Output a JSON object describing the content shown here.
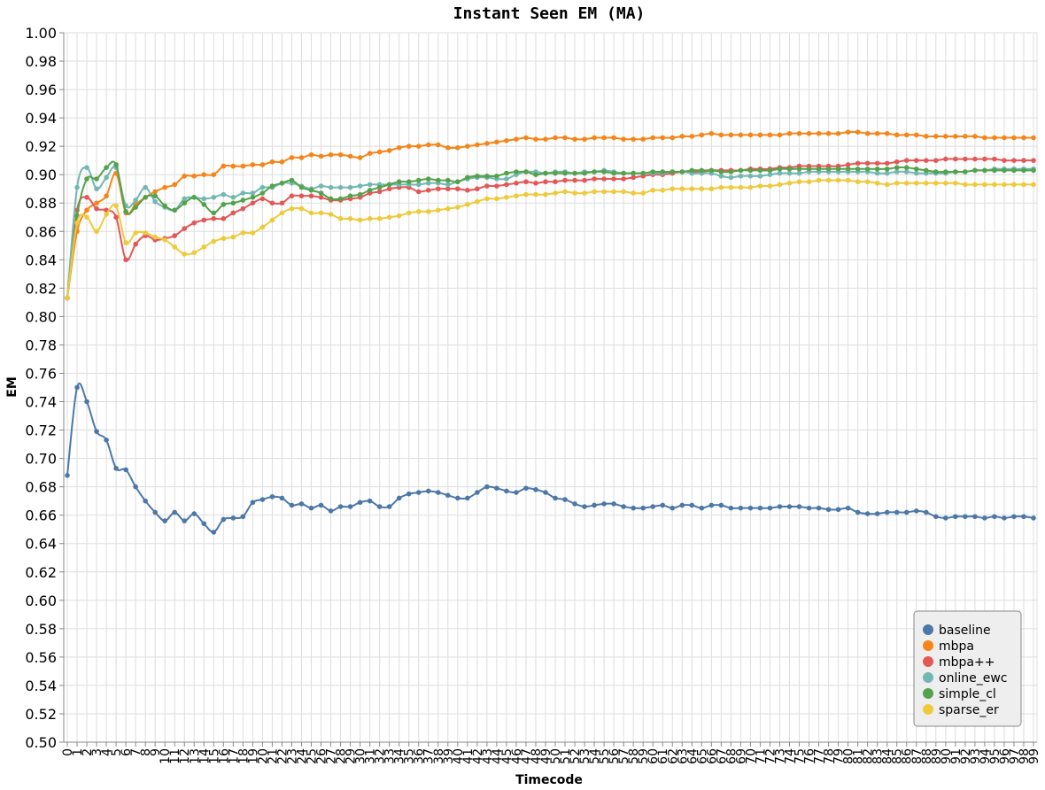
{
  "chart_data": {
    "type": "line",
    "title": "Instant Seen EM (MA)",
    "xlabel": "Timecode",
    "ylabel": "EM",
    "xlim": [
      0,
      99
    ],
    "ylim": [
      0.5,
      1.0
    ],
    "ytick_labels": [
      "0.50",
      "0.52",
      "0.54",
      "0.56",
      "0.58",
      "0.60",
      "0.62",
      "0.64",
      "0.66",
      "0.68",
      "0.70",
      "0.72",
      "0.74",
      "0.76",
      "0.78",
      "0.80",
      "0.82",
      "0.84",
      "0.86",
      "0.88",
      "0.90",
      "0.92",
      "0.94",
      "0.96",
      "0.98",
      "1.00"
    ],
    "grid": true,
    "legend_position": "bottom-right",
    "series": [
      {
        "name": "baseline",
        "color": "#4c78a8",
        "values": [
          0.688,
          0.75,
          0.74,
          0.719,
          0.713,
          0.693,
          0.692,
          0.68,
          0.67,
          0.662,
          0.656,
          0.662,
          0.656,
          0.661,
          0.654,
          0.648,
          0.657,
          0.658,
          0.659,
          0.669,
          0.671,
          0.673,
          0.672,
          0.667,
          0.668,
          0.665,
          0.667,
          0.663,
          0.666,
          0.666,
          0.669,
          0.67,
          0.666,
          0.666,
          0.672,
          0.675,
          0.676,
          0.677,
          0.676,
          0.674,
          0.672,
          0.672,
          0.676,
          0.68,
          0.679,
          0.677,
          0.676,
          0.679,
          0.678,
          0.676,
          0.672,
          0.671,
          0.668,
          0.666,
          0.667,
          0.668,
          0.668,
          0.666,
          0.665,
          0.665,
          0.666,
          0.667,
          0.665,
          0.667,
          0.667,
          0.665,
          0.667,
          0.667,
          0.665,
          0.665,
          0.665,
          0.665,
          0.665,
          0.666,
          0.666,
          0.666,
          0.665,
          0.665,
          0.664,
          0.664,
          0.665,
          0.662,
          0.661,
          0.661,
          0.662,
          0.662,
          0.662,
          0.663,
          0.662,
          0.659,
          0.658,
          0.659,
          0.659,
          0.659,
          0.658,
          0.659,
          0.658,
          0.659,
          0.659,
          0.658
        ]
      },
      {
        "name": "mbpa",
        "color": "#f58518",
        "values": [
          0.813,
          0.86,
          0.875,
          0.88,
          0.885,
          0.901,
          0.873,
          0.879,
          0.884,
          0.888,
          0.891,
          0.893,
          0.899,
          0.899,
          0.9,
          0.9,
          0.906,
          0.906,
          0.906,
          0.907,
          0.907,
          0.909,
          0.909,
          0.912,
          0.912,
          0.914,
          0.913,
          0.914,
          0.914,
          0.913,
          0.912,
          0.915,
          0.916,
          0.917,
          0.919,
          0.92,
          0.92,
          0.921,
          0.921,
          0.919,
          0.919,
          0.92,
          0.921,
          0.922,
          0.923,
          0.924,
          0.925,
          0.926,
          0.925,
          0.925,
          0.926,
          0.926,
          0.925,
          0.925,
          0.926,
          0.926,
          0.926,
          0.925,
          0.925,
          0.925,
          0.926,
          0.926,
          0.926,
          0.927,
          0.927,
          0.928,
          0.929,
          0.928,
          0.928,
          0.928,
          0.928,
          0.928,
          0.928,
          0.928,
          0.929,
          0.929,
          0.929,
          0.929,
          0.929,
          0.929,
          0.93,
          0.93,
          0.929,
          0.929,
          0.929,
          0.928,
          0.928,
          0.928,
          0.927,
          0.927,
          0.927,
          0.927,
          0.927,
          0.927,
          0.926,
          0.926,
          0.926,
          0.926,
          0.926,
          0.926
        ]
      },
      {
        "name": "mbpa++",
        "color": "#e45756",
        "values": [
          0.813,
          0.875,
          0.884,
          0.876,
          0.875,
          0.87,
          0.84,
          0.851,
          0.857,
          0.854,
          0.855,
          0.857,
          0.862,
          0.866,
          0.868,
          0.869,
          0.869,
          0.873,
          0.876,
          0.88,
          0.883,
          0.88,
          0.88,
          0.885,
          0.885,
          0.885,
          0.884,
          0.882,
          0.882,
          0.883,
          0.884,
          0.887,
          0.888,
          0.89,
          0.891,
          0.891,
          0.888,
          0.889,
          0.89,
          0.89,
          0.89,
          0.889,
          0.89,
          0.892,
          0.892,
          0.893,
          0.894,
          0.895,
          0.894,
          0.895,
          0.895,
          0.896,
          0.896,
          0.896,
          0.897,
          0.897,
          0.897,
          0.897,
          0.898,
          0.899,
          0.9,
          0.9,
          0.901,
          0.902,
          0.902,
          0.902,
          0.903,
          0.903,
          0.903,
          0.903,
          0.904,
          0.904,
          0.904,
          0.905,
          0.905,
          0.906,
          0.906,
          0.906,
          0.906,
          0.906,
          0.907,
          0.908,
          0.908,
          0.908,
          0.908,
          0.909,
          0.91,
          0.91,
          0.91,
          0.91,
          0.911,
          0.911,
          0.911,
          0.911,
          0.911,
          0.911,
          0.91,
          0.91,
          0.91,
          0.91
        ]
      },
      {
        "name": "online_ewc",
        "color": "#72b7b2",
        "values": [
          0.813,
          0.891,
          0.905,
          0.89,
          0.898,
          0.905,
          0.878,
          0.882,
          0.891,
          0.881,
          0.877,
          0.875,
          0.883,
          0.884,
          0.883,
          0.884,
          0.886,
          0.884,
          0.887,
          0.887,
          0.891,
          0.891,
          0.894,
          0.894,
          0.892,
          0.89,
          0.892,
          0.891,
          0.891,
          0.891,
          0.892,
          0.893,
          0.893,
          0.893,
          0.893,
          0.893,
          0.893,
          0.894,
          0.894,
          0.893,
          0.895,
          0.897,
          0.898,
          0.898,
          0.897,
          0.897,
          0.9,
          0.902,
          0.902,
          0.901,
          0.902,
          0.902,
          0.901,
          0.902,
          0.902,
          0.903,
          0.902,
          0.901,
          0.901,
          0.901,
          0.901,
          0.901,
          0.902,
          0.902,
          0.901,
          0.901,
          0.901,
          0.899,
          0.898,
          0.899,
          0.899,
          0.899,
          0.9,
          0.901,
          0.901,
          0.901,
          0.902,
          0.902,
          0.902,
          0.902,
          0.902,
          0.902,
          0.902,
          0.901,
          0.901,
          0.902,
          0.902,
          0.901,
          0.901,
          0.901,
          0.901,
          0.902,
          0.902,
          0.903,
          0.903,
          0.904,
          0.904,
          0.904,
          0.904,
          0.904
        ]
      },
      {
        "name": "simple_cl",
        "color": "#54a24b",
        "values": [
          0.813,
          0.871,
          0.897,
          0.897,
          0.905,
          0.907,
          0.874,
          0.877,
          0.884,
          0.885,
          0.878,
          0.875,
          0.88,
          0.884,
          0.879,
          0.873,
          0.879,
          0.88,
          0.882,
          0.884,
          0.887,
          0.892,
          0.894,
          0.896,
          0.891,
          0.889,
          0.887,
          0.883,
          0.883,
          0.885,
          0.886,
          0.889,
          0.891,
          0.893,
          0.895,
          0.895,
          0.896,
          0.897,
          0.896,
          0.896,
          0.895,
          0.898,
          0.899,
          0.899,
          0.899,
          0.901,
          0.902,
          0.902,
          0.9,
          0.901,
          0.901,
          0.901,
          0.901,
          0.901,
          0.902,
          0.902,
          0.901,
          0.901,
          0.901,
          0.901,
          0.902,
          0.902,
          0.902,
          0.902,
          0.903,
          0.903,
          0.903,
          0.902,
          0.902,
          0.903,
          0.903,
          0.903,
          0.903,
          0.904,
          0.904,
          0.904,
          0.904,
          0.904,
          0.904,
          0.904,
          0.904,
          0.904,
          0.904,
          0.904,
          0.904,
          0.905,
          0.905,
          0.904,
          0.903,
          0.902,
          0.902,
          0.902,
          0.902,
          0.903,
          0.903,
          0.903,
          0.903,
          0.903,
          0.903,
          0.903
        ]
      },
      {
        "name": "sparse_er",
        "color": "#eeca3b",
        "values": [
          0.813,
          0.866,
          0.87,
          0.86,
          0.872,
          0.878,
          0.852,
          0.859,
          0.859,
          0.856,
          0.854,
          0.849,
          0.844,
          0.845,
          0.849,
          0.853,
          0.855,
          0.856,
          0.859,
          0.859,
          0.863,
          0.868,
          0.873,
          0.876,
          0.876,
          0.873,
          0.873,
          0.872,
          0.869,
          0.869,
          0.868,
          0.869,
          0.869,
          0.87,
          0.871,
          0.873,
          0.874,
          0.874,
          0.875,
          0.876,
          0.877,
          0.879,
          0.881,
          0.883,
          0.883,
          0.884,
          0.885,
          0.886,
          0.886,
          0.886,
          0.887,
          0.888,
          0.887,
          0.887,
          0.888,
          0.888,
          0.888,
          0.888,
          0.887,
          0.887,
          0.889,
          0.889,
          0.89,
          0.89,
          0.89,
          0.89,
          0.89,
          0.891,
          0.891,
          0.891,
          0.891,
          0.892,
          0.892,
          0.893,
          0.894,
          0.895,
          0.895,
          0.896,
          0.896,
          0.896,
          0.896,
          0.895,
          0.895,
          0.894,
          0.893,
          0.894,
          0.894,
          0.894,
          0.894,
          0.894,
          0.894,
          0.894,
          0.893,
          0.893,
          0.893,
          0.893,
          0.893,
          0.893,
          0.893,
          0.893
        ]
      }
    ]
  }
}
